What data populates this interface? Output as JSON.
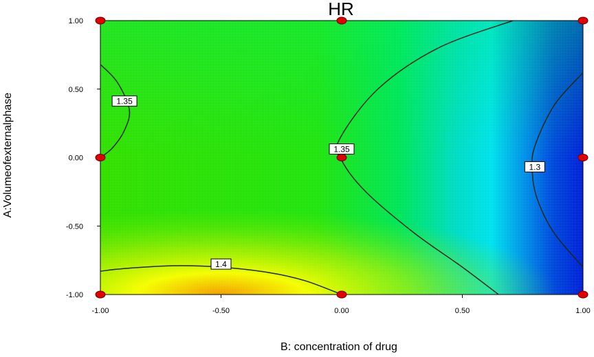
{
  "chart_data": {
    "type": "heatmap",
    "title": "HR",
    "xlabel": "B: concentration of drug",
    "ylabel": "A:Volumeofexternalphase",
    "xlim": [
      -1.0,
      1.0
    ],
    "ylim": [
      -1.0,
      1.0
    ],
    "x_tick_labels": [
      "-1.00",
      "-0.50",
      "0.00",
      "0.50",
      "1.00"
    ],
    "y_tick_labels": [
      "-1.00",
      "-0.50",
      "0.00",
      "0.50",
      "1.00"
    ],
    "colorscale": [
      "#0022dd",
      "#00e5f0",
      "#00ee44",
      "#66ee00",
      "#ffff00",
      "#ff9900"
    ],
    "contours": [
      {
        "label": "1.35",
        "label_at": [
          -0.9,
          0.41
        ],
        "points": [
          [
            -1.0,
            0.68
          ],
          [
            -0.93,
            0.55
          ],
          [
            -0.88,
            0.35
          ],
          [
            -0.9,
            0.2
          ],
          [
            -0.95,
            0.07
          ],
          [
            -1.0,
            0.0
          ]
        ]
      },
      {
        "label": "1.35",
        "label_at": [
          0.0,
          0.06
        ],
        "points": [
          [
            0.71,
            1.0
          ],
          [
            0.4,
            0.8
          ],
          [
            0.15,
            0.5
          ],
          [
            -0.01,
            0.13
          ],
          [
            0.0,
            -0.02
          ],
          [
            0.1,
            -0.25
          ],
          [
            0.3,
            -0.55
          ],
          [
            0.5,
            -0.8
          ],
          [
            0.65,
            -1.0
          ]
        ]
      },
      {
        "label": "1.3",
        "label_at": [
          0.8,
          -0.07
        ],
        "points": [
          [
            1.0,
            0.62
          ],
          [
            0.88,
            0.38
          ],
          [
            0.8,
            0.08
          ],
          [
            0.79,
            -0.1
          ],
          [
            0.81,
            -0.3
          ],
          [
            0.88,
            -0.55
          ],
          [
            1.0,
            -0.8
          ]
        ]
      },
      {
        "label": "1.4",
        "label_at": [
          -0.5,
          -0.78
        ],
        "points": [
          [
            -1.0,
            -0.83
          ],
          [
            -0.9,
            -0.81
          ],
          [
            -0.7,
            -0.79
          ],
          [
            -0.5,
            -0.8
          ],
          [
            -0.3,
            -0.84
          ],
          [
            -0.15,
            -0.9
          ],
          [
            0.0,
            -1.0
          ]
        ]
      }
    ],
    "design_points": [
      [
        -1,
        1
      ],
      [
        0,
        1
      ],
      [
        1,
        1
      ],
      [
        -1,
        0
      ],
      [
        0,
        0
      ],
      [
        1,
        0
      ],
      [
        -1,
        -1
      ],
      [
        0,
        -1
      ],
      [
        1,
        -1
      ]
    ]
  }
}
